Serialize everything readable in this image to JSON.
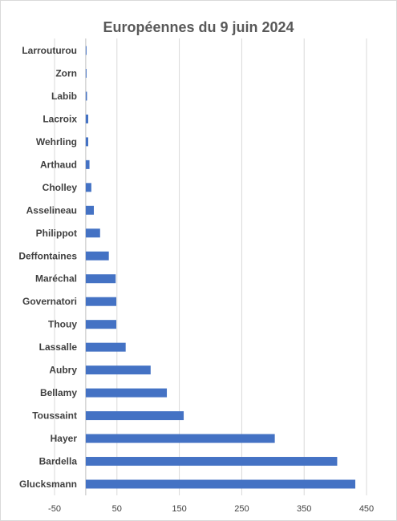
{
  "chart_data": {
    "type": "bar",
    "orientation": "horizontal",
    "title": "Européennes du 9 juin 2024",
    "categories": [
      "Larrouturou",
      "Zorn",
      "Labib",
      "Lacroix",
      "Wehrling",
      "Arthaud",
      "Cholley",
      "Asselineau",
      "Philippot",
      "Deffontaines",
      "Maréchal",
      "Governatori",
      "Thouy",
      "Lassalle",
      "Aubry",
      "Bellamy",
      "Toussaint",
      "Hayer",
      "Bardella",
      "Glucksmann"
    ],
    "values": [
      1,
      1,
      2,
      4,
      4,
      6,
      9,
      13,
      23,
      37,
      48,
      49,
      49,
      64,
      104,
      130,
      157,
      303,
      403,
      432
    ],
    "xlim": [
      -50,
      450
    ],
    "xticks": [
      -50,
      50,
      150,
      250,
      350,
      450
    ],
    "grid": true,
    "legend": "none",
    "bar_color": "#4472c4"
  }
}
